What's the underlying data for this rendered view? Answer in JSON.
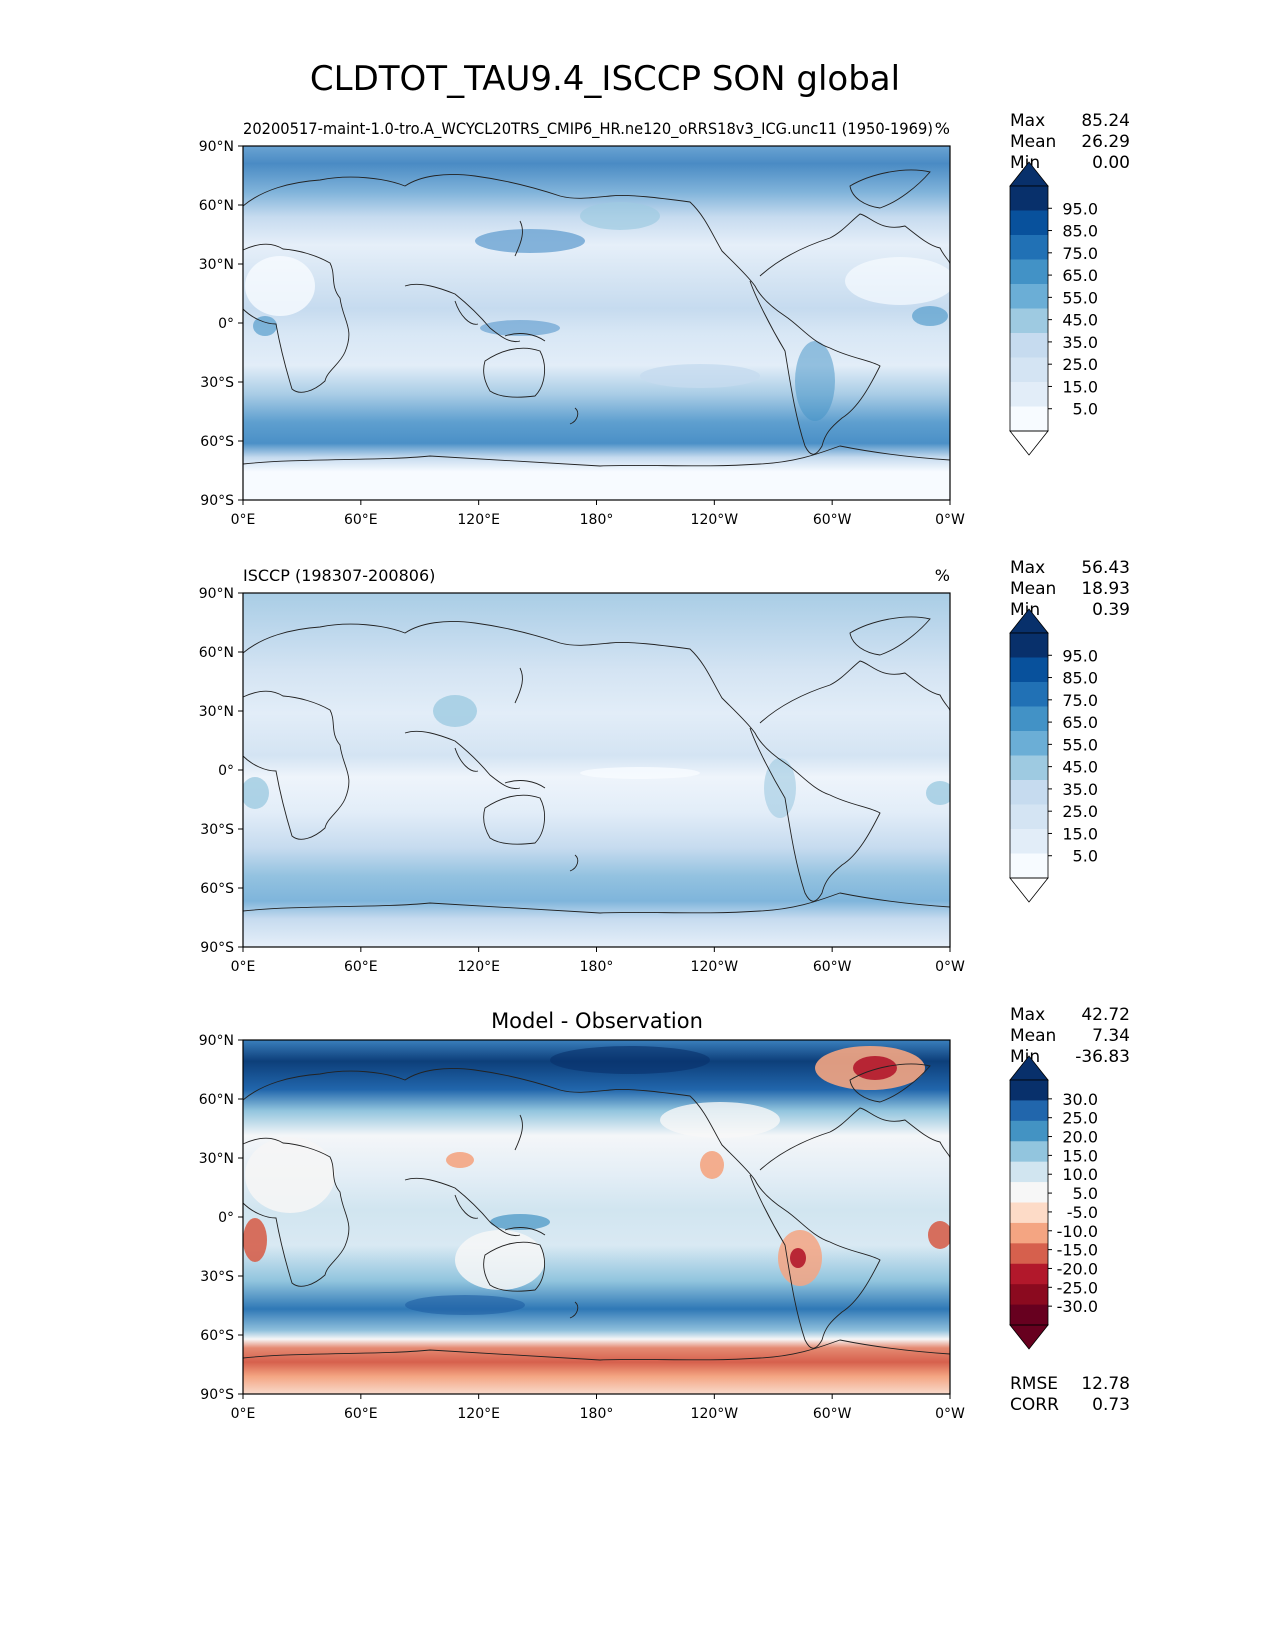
{
  "figure": {
    "title": "CLDTOT_TAU9.4_ISCCP SON global"
  },
  "x_ticks": [
    "0°E",
    "60°E",
    "120°E",
    "180°",
    "120°W",
    "60°W",
    "0°W"
  ],
  "y_ticks": [
    "90°N",
    "60°N",
    "30°N",
    "0°",
    "30°S",
    "60°S",
    "90°S"
  ],
  "panels": [
    {
      "left_title": "20200517-maint-1.0-tro.A_WCYCL20TRS_CMIP6_HR.ne120_oRRS18v3_ICG.unc11 (1950-1969)",
      "center_title": "",
      "units": "%",
      "stats": [
        {
          "label": "Max",
          "value": "85.24"
        },
        {
          "label": "Mean",
          "value": "26.29"
        },
        {
          "label": "Min",
          "value": "0.00"
        }
      ],
      "colorbar_labels": [
        "95.0",
        "85.0",
        "75.0",
        "65.0",
        "55.0",
        "45.0",
        "35.0",
        "25.0",
        "15.0",
        "5.0"
      ],
      "colorbar_colors": [
        "#08306b",
        "#08519c",
        "#2171b5",
        "#4292c6",
        "#6baed6",
        "#9ecae1",
        "#c6dbef",
        "#d4e4f3",
        "#e2edf8",
        "#f7fbff"
      ],
      "extremes": {
        "over": "#08306b",
        "under": "#ffffff"
      },
      "footer": []
    },
    {
      "left_title": "ISCCP (198307-200806)",
      "center_title": "",
      "units": "%",
      "stats": [
        {
          "label": "Max",
          "value": "56.43"
        },
        {
          "label": "Mean",
          "value": "18.93"
        },
        {
          "label": "Min",
          "value": "0.39"
        }
      ],
      "colorbar_labels": [
        "95.0",
        "85.0",
        "75.0",
        "65.0",
        "55.0",
        "45.0",
        "35.0",
        "25.0",
        "15.0",
        "5.0"
      ],
      "colorbar_colors": [
        "#08306b",
        "#08519c",
        "#2171b5",
        "#4292c6",
        "#6baed6",
        "#9ecae1",
        "#c6dbef",
        "#d4e4f3",
        "#e2edf8",
        "#f7fbff"
      ],
      "extremes": {
        "over": "#08306b",
        "under": "#ffffff"
      },
      "footer": []
    },
    {
      "left_title": "",
      "center_title": "Model - Observation",
      "units": "",
      "stats": [
        {
          "label": "Max",
          "value": "42.72"
        },
        {
          "label": "Mean",
          "value": "7.34"
        },
        {
          "label": "Min",
          "value": "-36.83"
        }
      ],
      "colorbar_labels": [
        "30.0",
        "25.0",
        "20.0",
        "15.0",
        "10.0",
        "5.0",
        "-5.0",
        "-10.0",
        "-15.0",
        "-20.0",
        "-25.0",
        "-30.0"
      ],
      "colorbar_colors": [
        "#08306b",
        "#2166ac",
        "#4393c3",
        "#92c5de",
        "#d1e5f0",
        "#f7f7f7",
        "#fddbc7",
        "#f4a582",
        "#d6604d",
        "#b2182b",
        "#8b0a1f",
        "#67001f"
      ],
      "extremes": {
        "over": "#08306b",
        "under": "#67001f"
      },
      "footer": [
        {
          "label": "RMSE",
          "value": "12.78"
        },
        {
          "label": "CORR",
          "value": "0.73"
        }
      ]
    }
  ]
}
